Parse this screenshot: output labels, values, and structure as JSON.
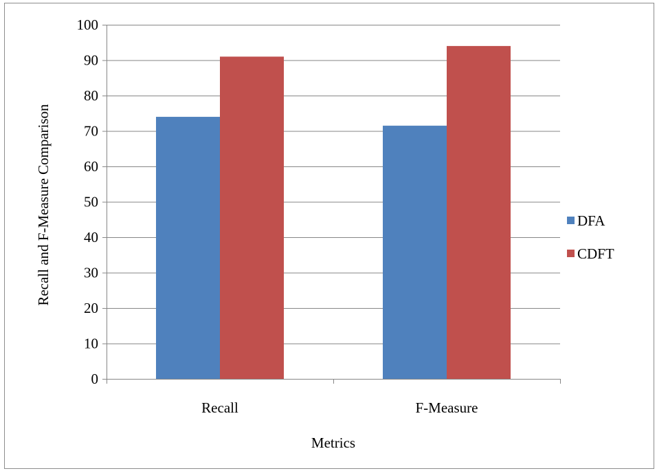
{
  "chart_data": {
    "type": "bar",
    "title": "",
    "xlabel": "Metrics",
    "ylabel": "Recall and F-Measure Comparison",
    "categories": [
      "Recall",
      "F-Measure"
    ],
    "series": [
      {
        "name": "DFA",
        "values": [
          74,
          71.5
        ],
        "color": "#4f81bd"
      },
      {
        "name": "CDFT",
        "values": [
          91,
          94
        ],
        "color": "#c0504d"
      }
    ],
    "ylim": [
      0,
      100
    ],
    "yticks": [
      0,
      10,
      20,
      30,
      40,
      50,
      60,
      70,
      80,
      90,
      100
    ],
    "grid": true,
    "legend_position": "right",
    "gridline_color": "#868686"
  }
}
